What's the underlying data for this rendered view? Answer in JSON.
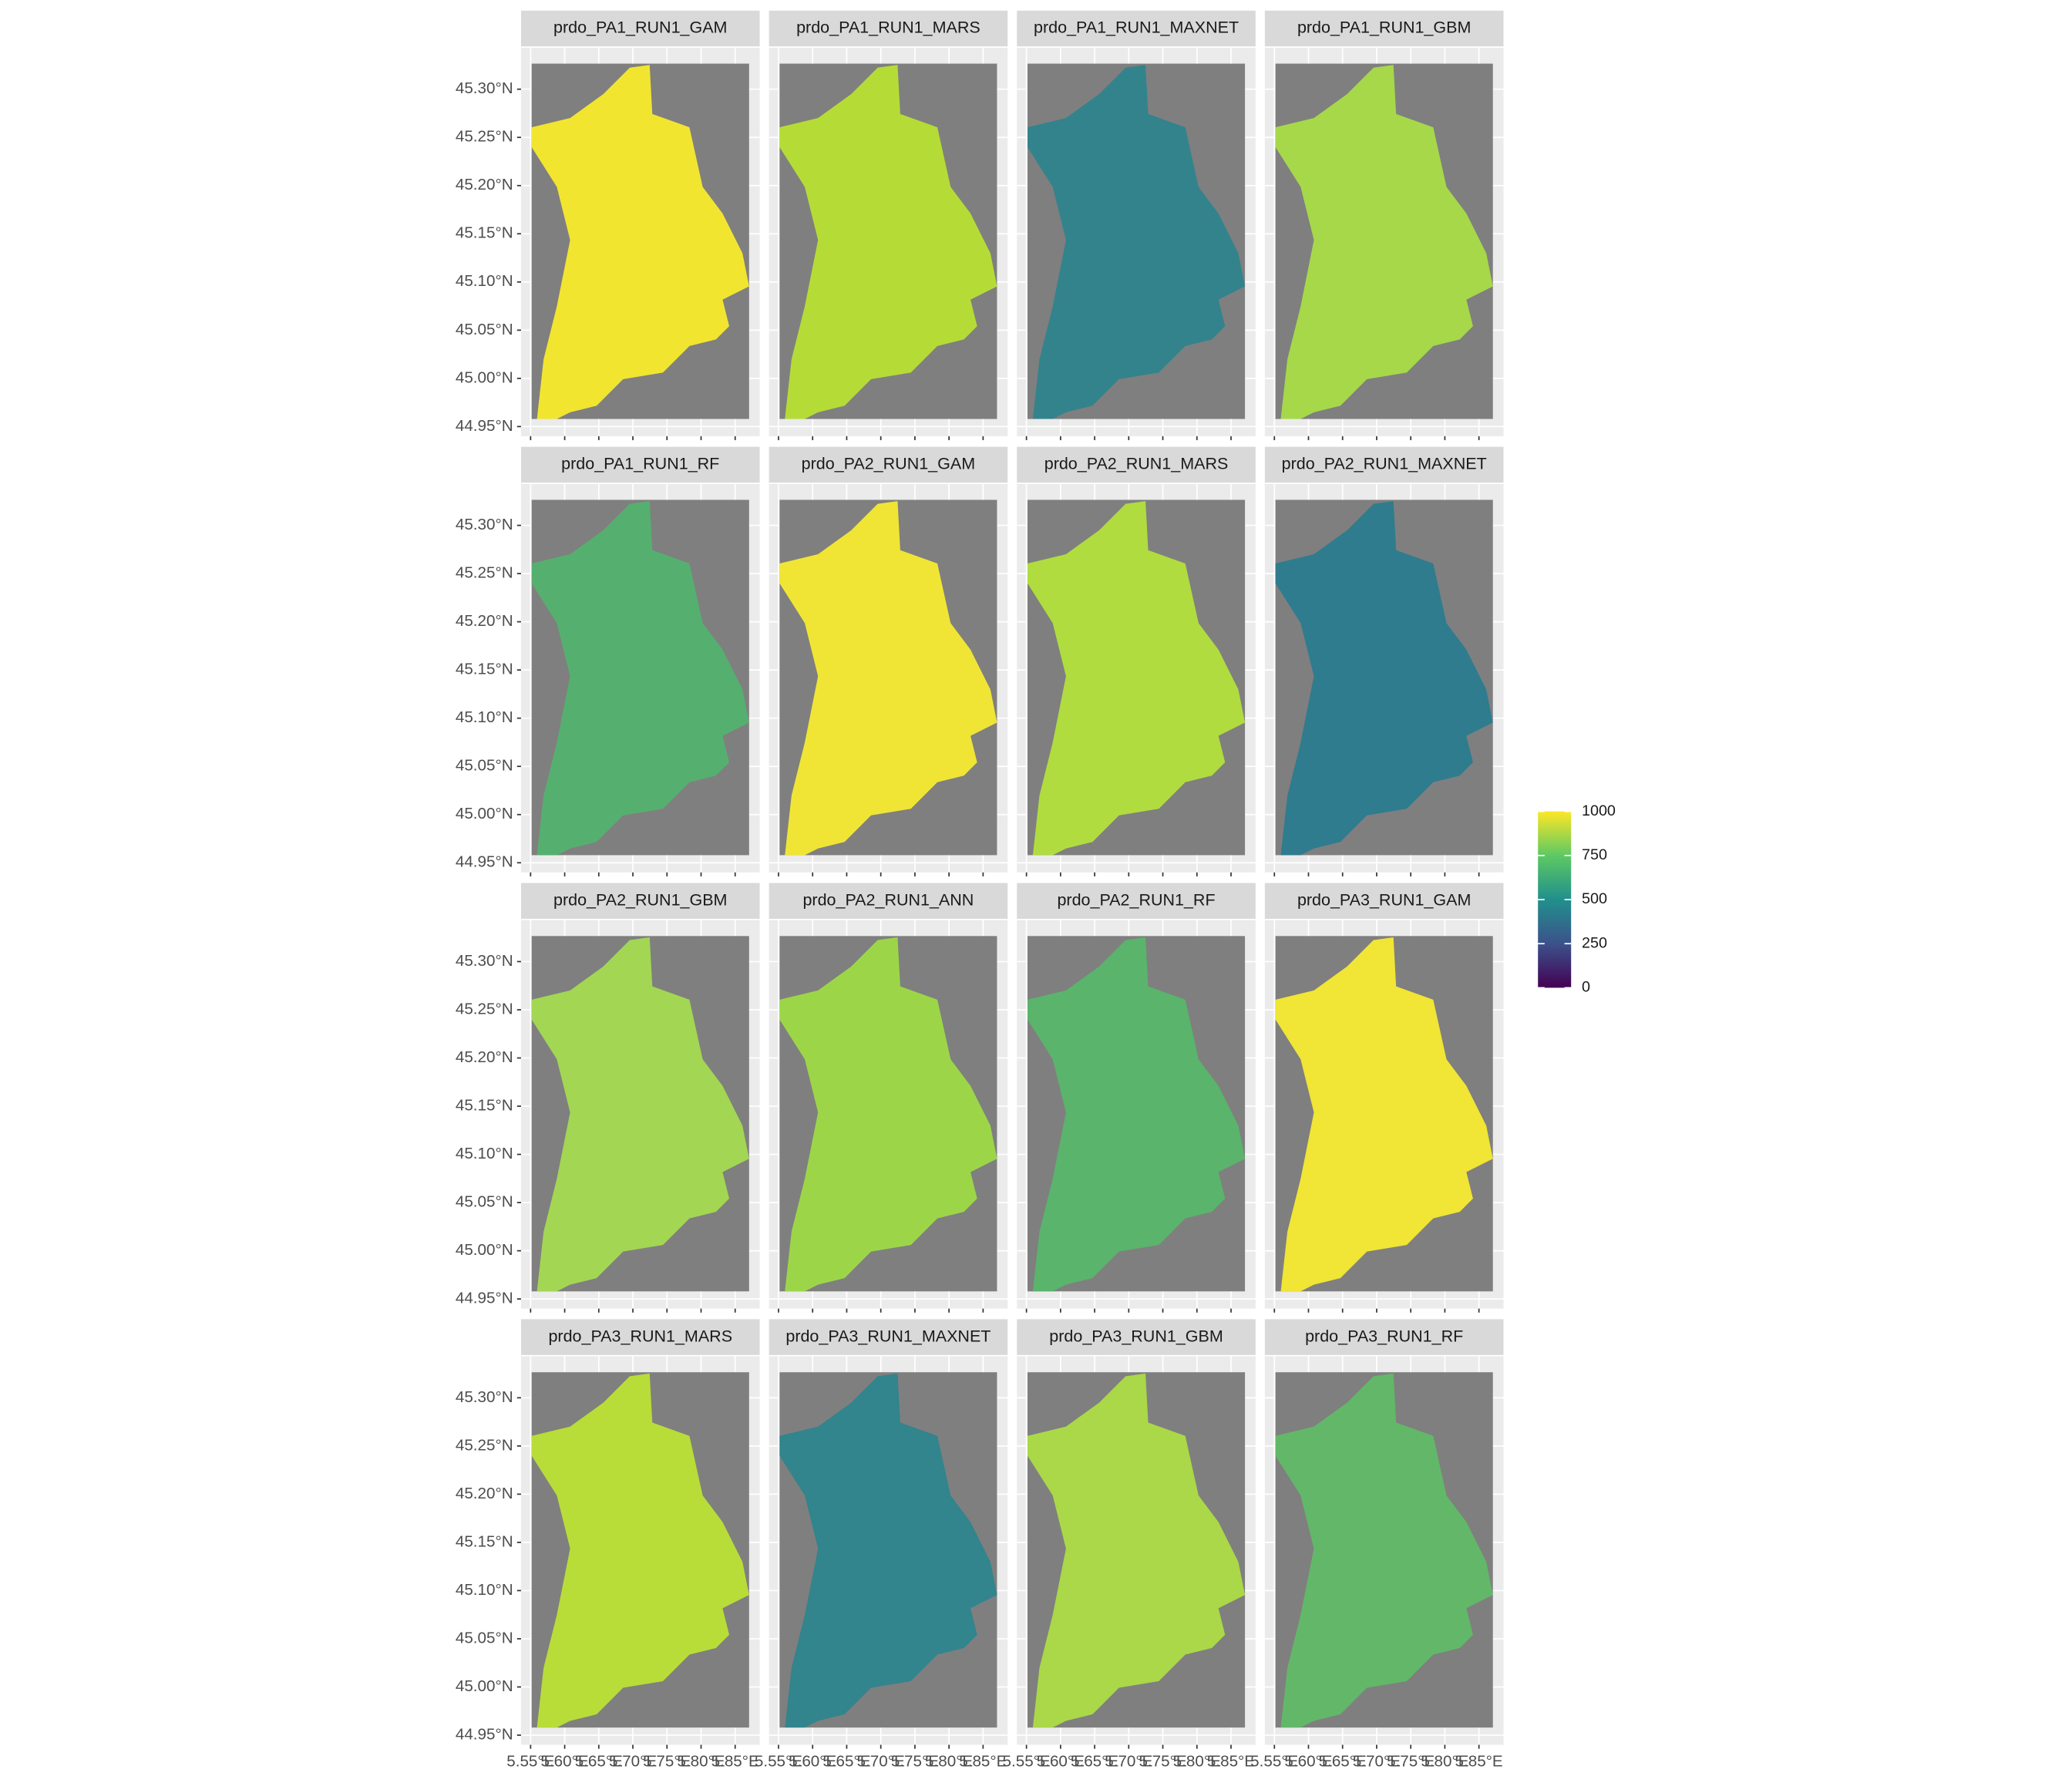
{
  "chart_data": {
    "type": "raster",
    "panels": [
      {
        "title": "prdo_PA1_RUN1_GAM",
        "color": "#f2e530"
      },
      {
        "title": "prdo_PA1_RUN1_MARS",
        "color": "#b5dc36"
      },
      {
        "title": "prdo_PA1_RUN1_MAXNET",
        "color": "#33838c"
      },
      {
        "title": "prdo_PA1_RUN1_GBM",
        "color": "#a6d84a"
      },
      {
        "title": "prdo_PA1_RUN1_RF",
        "color": "#55b070"
      },
      {
        "title": "prdo_PA2_RUN1_GAM",
        "color": "#f0e535"
      },
      {
        "title": "prdo_PA2_RUN1_MARS",
        "color": "#b0dc40"
      },
      {
        "title": "prdo_PA2_RUN1_MAXNET",
        "color": "#2f7c8e"
      },
      {
        "title": "prdo_PA2_RUN1_GBM",
        "color": "#a3d653"
      },
      {
        "title": "prdo_PA2_RUN1_ANN",
        "color": "#9cd648"
      },
      {
        "title": "prdo_PA2_RUN1_RF",
        "color": "#5ab46c"
      },
      {
        "title": "prdo_PA3_RUN1_GAM",
        "color": "#f1e535"
      },
      {
        "title": "prdo_PA3_RUN1_MARS",
        "color": "#b8dd38"
      },
      {
        "title": "prdo_PA3_RUN1_MAXNET",
        "color": "#32848d"
      },
      {
        "title": "prdo_PA3_RUN1_GBM",
        "color": "#aad848"
      },
      {
        "title": "prdo_PA3_RUN1_RF",
        "color": "#62b868"
      }
    ],
    "xlim": [
      5.536,
      5.886
    ],
    "ylim": [
      44.94,
      45.343
    ],
    "xticks": [
      {
        "value": 5.55,
        "label": "5.55°E"
      },
      {
        "value": 5.6,
        "label": "5.60°E"
      },
      {
        "value": 5.65,
        "label": "5.65°E"
      },
      {
        "value": 5.7,
        "label": "5.70°E"
      },
      {
        "value": 5.75,
        "label": "5.75°E"
      },
      {
        "value": 5.8,
        "label": "5.80°E"
      },
      {
        "value": 5.85,
        "label": "5.85°E"
      }
    ],
    "yticks": [
      {
        "value": 44.95,
        "label": "44.95°N"
      },
      {
        "value": 45.0,
        "label": "45.00°N"
      },
      {
        "value": 45.05,
        "label": "45.05°N"
      },
      {
        "value": 45.1,
        "label": "45.10°N"
      },
      {
        "value": 45.15,
        "label": "45.15°N"
      },
      {
        "value": 45.2,
        "label": "45.20°N"
      },
      {
        "value": 45.25,
        "label": "45.25°N"
      },
      {
        "value": 45.3,
        "label": "45.30°N"
      }
    ],
    "legend": {
      "lim": [
        0,
        1000
      ],
      "ticks": [
        0,
        250,
        500,
        750,
        1000
      ],
      "colors": [
        "#440154",
        "#3b528b",
        "#21908c",
        "#5dc963",
        "#fde725"
      ]
    }
  }
}
